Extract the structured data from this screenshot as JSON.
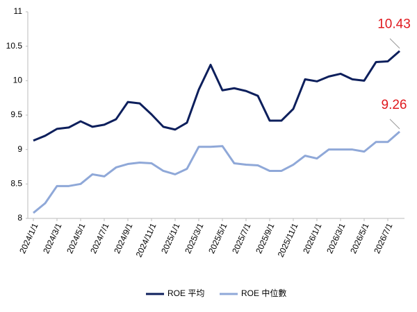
{
  "chart_data": {
    "type": "line",
    "categories": [
      "2024/1/1",
      null,
      "2024/3/1",
      null,
      "2024/5/1",
      null,
      "2024/7/1",
      null,
      "2024/9/1",
      null,
      "2024/11/1",
      null,
      "2025/1/1",
      null,
      "2025/3/1",
      null,
      "2025/5/1",
      null,
      "2025/7/1",
      null,
      "2025/9/1",
      null,
      "2025/11/1",
      null,
      "2026/1/1",
      null,
      "2026/3/1",
      null,
      "2026/5/1",
      null,
      "2026/7/1",
      null
    ],
    "series": [
      {
        "name": "ROE 平均",
        "color": "#0d1f5c",
        "values": [
          9.13,
          9.2,
          9.3,
          9.32,
          9.41,
          9.33,
          9.36,
          9.44,
          9.69,
          9.67,
          9.51,
          9.33,
          9.29,
          9.39,
          9.87,
          10.23,
          9.86,
          9.89,
          9.85,
          9.78,
          9.42,
          9.42,
          9.59,
          10.02,
          9.99,
          10.06,
          10.1,
          10.02,
          10.0,
          10.27,
          10.28,
          10.43
        ]
      },
      {
        "name": "ROE 中位數",
        "color": "#8fa8d8",
        "values": [
          8.08,
          8.22,
          8.47,
          8.47,
          8.5,
          8.64,
          8.61,
          8.74,
          8.79,
          8.81,
          8.8,
          8.69,
          8.64,
          8.72,
          9.04,
          9.04,
          9.05,
          8.8,
          8.78,
          8.77,
          8.69,
          8.69,
          8.78,
          8.91,
          8.87,
          9.0,
          9.0,
          9.0,
          8.97,
          9.11,
          9.11,
          9.26
        ]
      }
    ],
    "ylim": [
      8,
      11
    ],
    "yticks": [
      8,
      8.5,
      9,
      9.5,
      10,
      10.5,
      11
    ],
    "grid": false,
    "legend": "bottom",
    "label_color": "#e0191e"
  }
}
